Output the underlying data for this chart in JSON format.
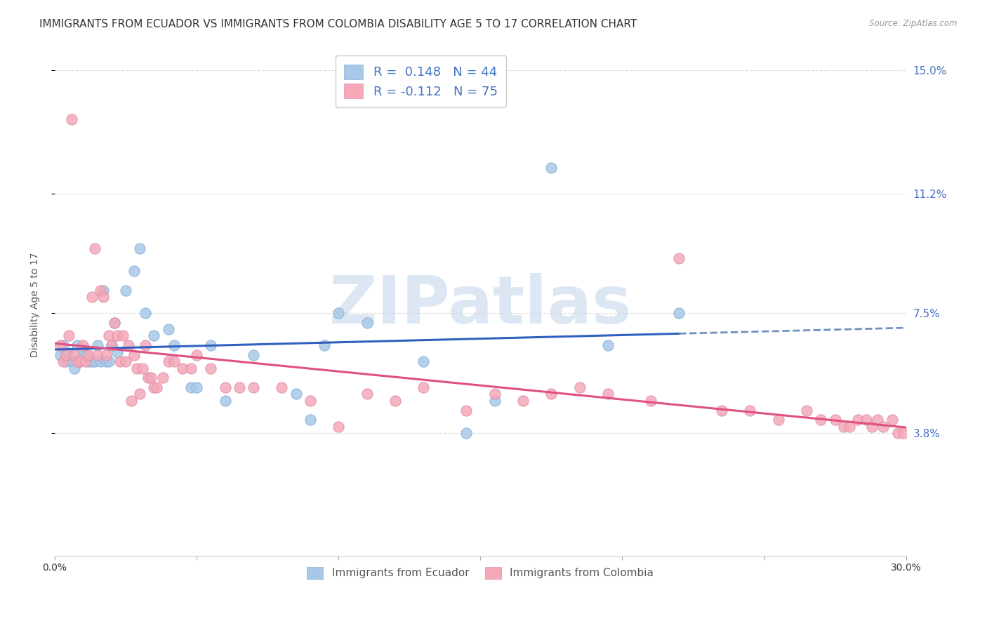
{
  "title": "IMMIGRANTS FROM ECUADOR VS IMMIGRANTS FROM COLOMBIA DISABILITY AGE 5 TO 17 CORRELATION CHART",
  "source": "Source: ZipAtlas.com",
  "ylabel": "Disability Age 5 to 17",
  "xlim": [
    0.0,
    0.3
  ],
  "ylim": [
    0.0,
    0.155
  ],
  "yticks": [
    0.038,
    0.075,
    0.112,
    0.15
  ],
  "ytick_labels": [
    "3.8%",
    "7.5%",
    "11.2%",
    "15.0%"
  ],
  "xticks": [
    0.0,
    0.05,
    0.1,
    0.15,
    0.2,
    0.25,
    0.3
  ],
  "xtick_labels": [
    "0.0%",
    "",
    "",
    "",
    "",
    "",
    "30.0%"
  ],
  "ecuador_color": "#a8c8e8",
  "colombia_color": "#f4a8b8",
  "ecuador_R": 0.148,
  "ecuador_N": 44,
  "colombia_R": -0.112,
  "colombia_N": 75,
  "ecuador_x": [
    0.002,
    0.003,
    0.004,
    0.005,
    0.006,
    0.007,
    0.008,
    0.009,
    0.01,
    0.011,
    0.012,
    0.013,
    0.014,
    0.015,
    0.016,
    0.017,
    0.018,
    0.019,
    0.02,
    0.021,
    0.022,
    0.025,
    0.028,
    0.03,
    0.032,
    0.035,
    0.04,
    0.042,
    0.048,
    0.05,
    0.055,
    0.06,
    0.07,
    0.085,
    0.09,
    0.095,
    0.1,
    0.11,
    0.13,
    0.145,
    0.155,
    0.175,
    0.195,
    0.22
  ],
  "ecuador_y": [
    0.062,
    0.065,
    0.06,
    0.062,
    0.06,
    0.058,
    0.065,
    0.06,
    0.063,
    0.062,
    0.06,
    0.06,
    0.06,
    0.065,
    0.06,
    0.082,
    0.06,
    0.06,
    0.065,
    0.072,
    0.063,
    0.082,
    0.088,
    0.095,
    0.075,
    0.068,
    0.07,
    0.065,
    0.052,
    0.052,
    0.065,
    0.048,
    0.062,
    0.05,
    0.042,
    0.065,
    0.075,
    0.072,
    0.06,
    0.038,
    0.048,
    0.12,
    0.065,
    0.075
  ],
  "colombia_x": [
    0.002,
    0.003,
    0.004,
    0.005,
    0.006,
    0.007,
    0.008,
    0.009,
    0.01,
    0.011,
    0.012,
    0.013,
    0.014,
    0.015,
    0.016,
    0.017,
    0.018,
    0.019,
    0.02,
    0.021,
    0.022,
    0.023,
    0.024,
    0.025,
    0.026,
    0.027,
    0.028,
    0.029,
    0.03,
    0.031,
    0.032,
    0.033,
    0.034,
    0.035,
    0.036,
    0.038,
    0.04,
    0.042,
    0.045,
    0.048,
    0.05,
    0.055,
    0.06,
    0.065,
    0.07,
    0.08,
    0.09,
    0.1,
    0.11,
    0.12,
    0.13,
    0.145,
    0.155,
    0.165,
    0.175,
    0.185,
    0.195,
    0.21,
    0.22,
    0.235,
    0.245,
    0.255,
    0.265,
    0.27,
    0.275,
    0.278,
    0.28,
    0.283,
    0.286,
    0.288,
    0.29,
    0.292,
    0.295,
    0.297,
    0.299
  ],
  "colombia_y": [
    0.065,
    0.06,
    0.062,
    0.068,
    0.135,
    0.062,
    0.06,
    0.06,
    0.065,
    0.06,
    0.062,
    0.08,
    0.095,
    0.062,
    0.082,
    0.08,
    0.062,
    0.068,
    0.065,
    0.072,
    0.068,
    0.06,
    0.068,
    0.06,
    0.065,
    0.048,
    0.062,
    0.058,
    0.05,
    0.058,
    0.065,
    0.055,
    0.055,
    0.052,
    0.052,
    0.055,
    0.06,
    0.06,
    0.058,
    0.058,
    0.062,
    0.058,
    0.052,
    0.052,
    0.052,
    0.052,
    0.048,
    0.04,
    0.05,
    0.048,
    0.052,
    0.045,
    0.05,
    0.048,
    0.05,
    0.052,
    0.05,
    0.048,
    0.092,
    0.045,
    0.045,
    0.042,
    0.045,
    0.042,
    0.042,
    0.04,
    0.04,
    0.042,
    0.042,
    0.04,
    0.042,
    0.04,
    0.042,
    0.038,
    0.038
  ],
  "ecuador_line_color": "#3060c0",
  "colombia_line_color": "#e05080",
  "ecuador_ext_color": "#7090c0",
  "watermark_text": "ZIPatlas",
  "watermark_color": "#c5d8ec",
  "background_color": "#ffffff",
  "grid_color": "#dddddd",
  "title_fontsize": 11,
  "tick_fontsize": 10,
  "tick_color_right": "#4472c4",
  "legend_fontsize": 13
}
